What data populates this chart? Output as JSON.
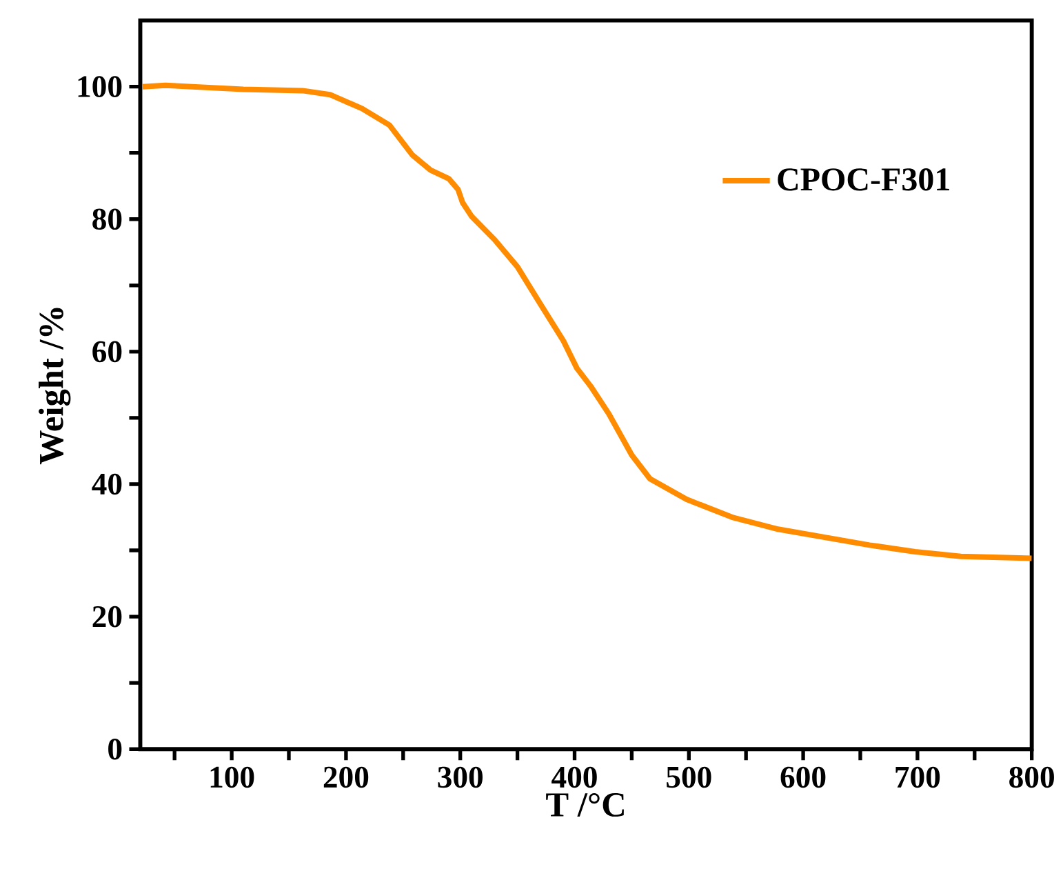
{
  "chart_data": {
    "type": "line",
    "xlabel": "T /°C",
    "ylabel": "Weight /%",
    "x": [
      22,
      42,
      110,
      162,
      186,
      214,
      238,
      258,
      274,
      290,
      298,
      302,
      310,
      330,
      350,
      370,
      390,
      402,
      414,
      430,
      450,
      466,
      498,
      538,
      578,
      618,
      658,
      698,
      738,
      800
    ],
    "series": [
      {
        "name": "CPOC-F301",
        "color": "#ff8c00",
        "values": [
          100.0,
          100.2,
          99.6,
          99.4,
          98.8,
          96.7,
          94.2,
          89.7,
          87.4,
          86.1,
          84.5,
          82.5,
          80.4,
          76.9,
          72.8,
          67.2,
          61.7,
          57.5,
          54.8,
          50.6,
          44.4,
          40.8,
          37.7,
          35.0,
          33.2,
          32.0,
          30.8,
          29.8,
          29.1,
          28.8
        ]
      }
    ],
    "xlim": [
      20,
      800
    ],
    "ylim": [
      0,
      110
    ],
    "xticks": [
      {
        "value": 50,
        "label": null
      },
      100,
      {
        "value": 150,
        "label": null
      },
      200,
      {
        "value": 250,
        "label": null
      },
      300,
      {
        "value": 350,
        "label": null
      },
      400,
      {
        "value": 450,
        "label": null
      },
      500,
      {
        "value": 550,
        "label": null
      },
      600,
      {
        "value": 650,
        "label": null
      },
      700,
      {
        "value": 750,
        "label": null
      },
      800
    ],
    "yticks": [
      0,
      {
        "value": 10,
        "label": null
      },
      20,
      {
        "value": 30,
        "label": null
      },
      40,
      {
        "value": 50,
        "label": null
      },
      60,
      {
        "value": 70,
        "label": null
      },
      80,
      {
        "value": 90,
        "label": null
      },
      100
    ],
    "legend": "top right",
    "grid": false,
    "marker": "none",
    "line_style": "solid"
  }
}
